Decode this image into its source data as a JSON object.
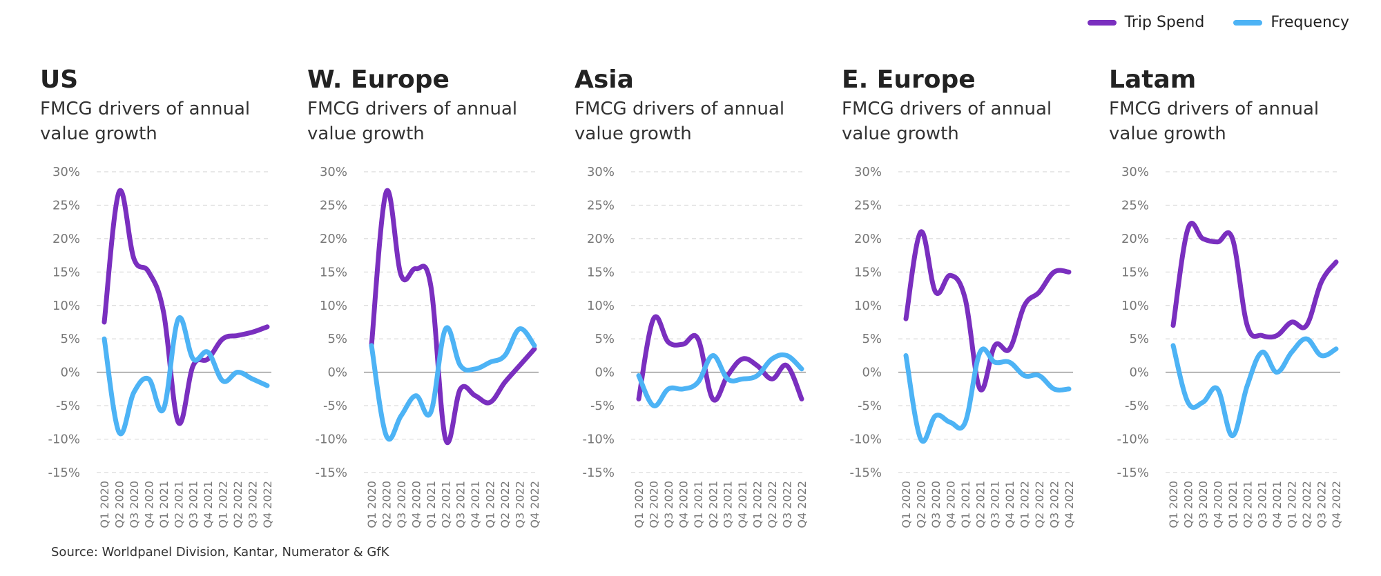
{
  "legend": {
    "trip_spend_label": "Trip Spend",
    "frequency_label": "Frequency",
    "trip_spend_color": "#7a2fbf",
    "frequency_color": "#4db3f5"
  },
  "source": "Source: Worldpanel Division, Kantar, Numerator & GfK",
  "chart_data": [
    {
      "type": "line",
      "title": "US",
      "subtitle": "FMCG drivers of annual value growth",
      "x": [
        "Q1 2020",
        "Q2 2020",
        "Q3 2020",
        "Q4 2020",
        "Q1 2021",
        "Q2 2021",
        "Q3 2021",
        "Q4 2021",
        "Q1 2022",
        "Q2 2022",
        "Q3 2022",
        "Q4 2022"
      ],
      "ylim": [
        -15,
        30
      ],
      "yticks": [
        "30%",
        "25%",
        "20%",
        "15%",
        "10%",
        "5%",
        "0%",
        "-5%",
        "-10%",
        "-15%"
      ],
      "series": [
        {
          "name": "Trip Spend",
          "values": [
            7.5,
            27,
            17,
            15,
            9,
            -7.5,
            1,
            2,
            5,
            5.5,
            6,
            6.8
          ]
        },
        {
          "name": "Frequency",
          "values": [
            5,
            -9,
            -3,
            -1,
            -5.5,
            8,
            2,
            3,
            -1.3,
            0,
            -1,
            -2
          ]
        }
      ]
    },
    {
      "type": "line",
      "title": "W. Europe",
      "subtitle": "FMCG drivers of annual value growth",
      "x": [
        "Q1 2020",
        "Q2 2020",
        "Q3 2020",
        "Q4 2020",
        "Q1 2021",
        "Q2 2021",
        "Q3 2021",
        "Q4 2021",
        "Q1 2022",
        "Q2 2022",
        "Q3 2022",
        "Q4 2022"
      ],
      "ylim": [
        -15,
        30
      ],
      "yticks": [
        "30%",
        "25%",
        "20%",
        "15%",
        "10%",
        "5%",
        "0%",
        "-5%",
        "-10%",
        "-15%"
      ],
      "series": [
        {
          "name": "Trip Spend",
          "values": [
            4,
            27,
            14.5,
            15.5,
            13,
            -10,
            -2.5,
            -3.5,
            -4.5,
            -1.5,
            1,
            3.5
          ]
        },
        {
          "name": "Frequency",
          "values": [
            4,
            -9.5,
            -6.5,
            -3.5,
            -6,
            6.5,
            1,
            0.5,
            1.5,
            2.5,
            6.5,
            4
          ]
        }
      ]
    },
    {
      "type": "line",
      "title": "Asia",
      "subtitle": "FMCG drivers of annual value growth",
      "x": [
        "Q1 2020",
        "Q2 2020",
        "Q3 2020",
        "Q4 2020",
        "Q1 2021",
        "Q2 2021",
        "Q3 2021",
        "Q4 2021",
        "Q1 2022",
        "Q2 2022",
        "Q3 2022",
        "Q4 2022"
      ],
      "ylim": [
        -15,
        30
      ],
      "yticks": [
        "30%",
        "25%",
        "20%",
        "15%",
        "10%",
        "5%",
        "0%",
        "-5%",
        "-10%",
        "-15%"
      ],
      "series": [
        {
          "name": "Trip Spend",
          "values": [
            -4,
            8,
            4.5,
            4.2,
            5,
            -4,
            -0.5,
            2,
            1,
            -1,
            1,
            -4
          ]
        },
        {
          "name": "Frequency",
          "values": [
            -0.5,
            -5,
            -2.5,
            -2.5,
            -1.5,
            2.5,
            -1,
            -1,
            -0.5,
            2,
            2.5,
            0.5
          ]
        }
      ]
    },
    {
      "type": "line",
      "title": "E. Europe",
      "subtitle": "FMCG drivers of annual value growth",
      "x": [
        "Q1 2020",
        "Q2 2020",
        "Q3 2020",
        "Q4 2020",
        "Q1 2021",
        "Q2 2021",
        "Q3 2021",
        "Q4 2021",
        "Q1 2022",
        "Q2 2022",
        "Q3 2022",
        "Q4 2022"
      ],
      "ylim": [
        -15,
        30
      ],
      "yticks": [
        "30%",
        "25%",
        "20%",
        "15%",
        "10%",
        "5%",
        "0%",
        "-5%",
        "-10%",
        "-15%"
      ],
      "series": [
        {
          "name": "Trip Spend",
          "values": [
            8,
            21,
            12,
            14.5,
            11,
            -2.5,
            4,
            3.5,
            10,
            12,
            15,
            15
          ]
        },
        {
          "name": "Frequency",
          "values": [
            2.5,
            -10,
            -6.5,
            -7.5,
            -7.5,
            3,
            1.5,
            1.5,
            -0.5,
            -0.5,
            -2.5,
            -2.5
          ]
        }
      ]
    },
    {
      "type": "line",
      "title": "Latam",
      "subtitle": "FMCG drivers of annual value growth",
      "x": [
        "Q1 2020",
        "Q2 2020",
        "Q3 2020",
        "Q4 2020",
        "Q1 2021",
        "Q2 2021",
        "Q3 2021",
        "Q4 2021",
        "Q1 2022",
        "Q2 2022",
        "Q3 2022",
        "Q4 2022"
      ],
      "ylim": [
        -15,
        30
      ],
      "yticks": [
        "30%",
        "25%",
        "20%",
        "15%",
        "10%",
        "5%",
        "0%",
        "-5%",
        "-10%",
        "-15%"
      ],
      "series": [
        {
          "name": "Trip Spend",
          "values": [
            7,
            21.5,
            20,
            19.5,
            20,
            7,
            5.5,
            5.5,
            7.5,
            7,
            13.5,
            16.5
          ]
        },
        {
          "name": "Frequency",
          "values": [
            4,
            -4.5,
            -4.5,
            -2.5,
            -9.5,
            -2,
            3,
            0,
            3,
            5,
            2.5,
            3.5
          ]
        }
      ]
    }
  ]
}
